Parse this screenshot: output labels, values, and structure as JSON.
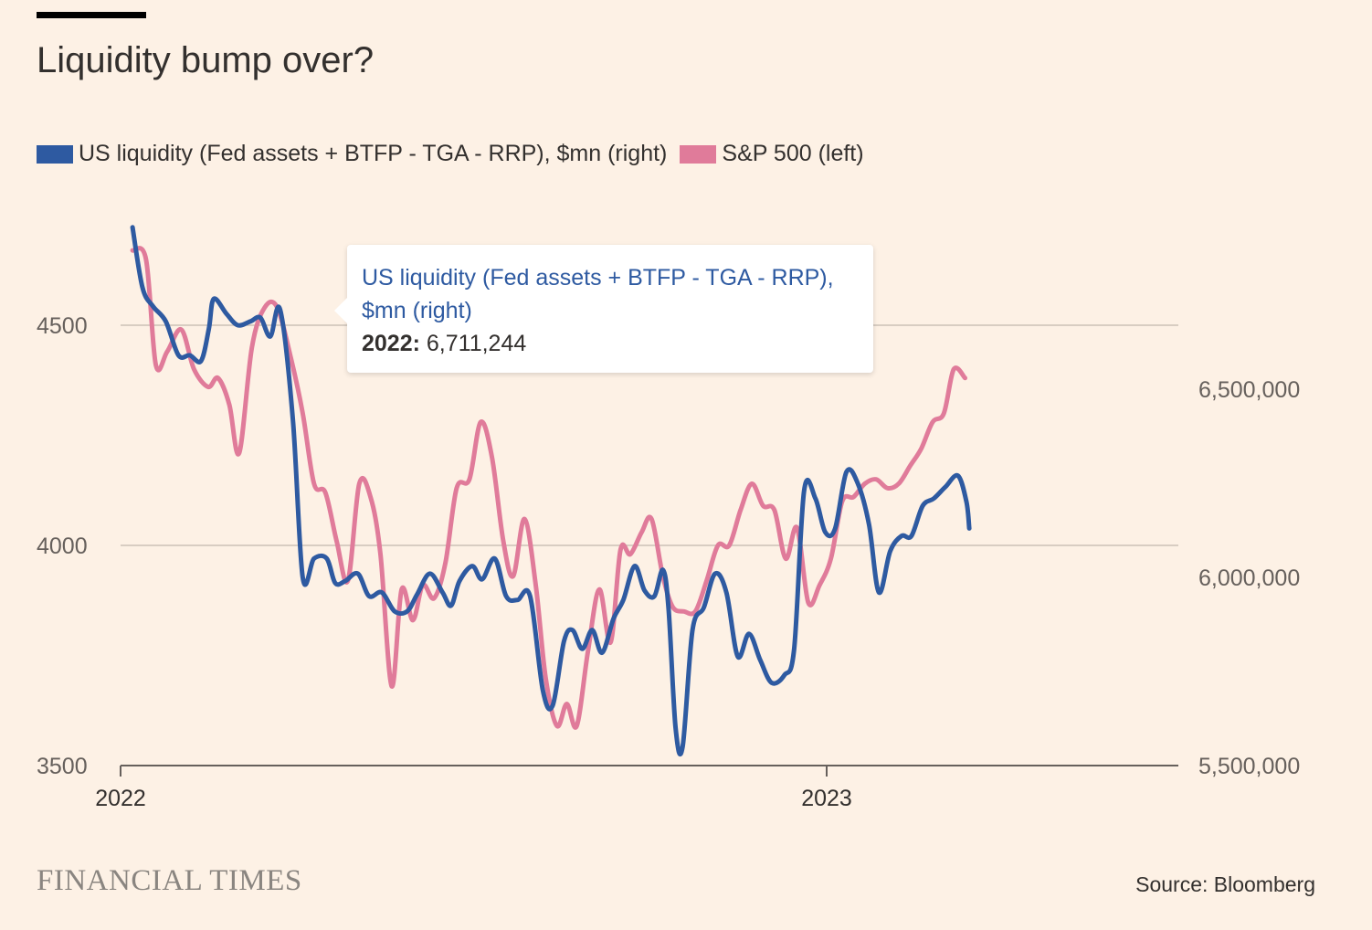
{
  "title": "Liquidity bump over?",
  "legend": {
    "items": [
      {
        "label": "US liquidity (Fed assets + BTFP - TGA - RRP), $mn (right)",
        "color": "#2e5aa1"
      },
      {
        "label": "S&P 500 (left)",
        "color": "#e07b9a"
      }
    ]
  },
  "tooltip": {
    "series": "US liquidity (Fed assets + BTFP - TGA - RRP), $mn (right)",
    "period_label": "2022:",
    "value": "6,711,244"
  },
  "brand": "FINANCIAL TIMES",
  "source": "Source: Bloomberg",
  "chart_data": {
    "type": "line",
    "x_axis": {
      "ticks": [
        "2022",
        "2023"
      ],
      "tick_values": [
        2022.0,
        2023.0
      ],
      "range": [
        2022.0,
        2023.47
      ]
    },
    "y_left": {
      "range": [
        3500,
        4700
      ],
      "ticks": [
        3500,
        4000,
        4500
      ],
      "tick_labels": [
        "3500",
        "4000",
        "4500"
      ]
    },
    "y_right": {
      "range": [
        5500000,
        6980000
      ],
      "ticks": [
        5500000,
        6000000,
        6500000
      ],
      "tick_labels": [
        "5,500,000",
        "6,000,000",
        "6,500,000"
      ]
    },
    "grid": true,
    "legend_position": "top-left",
    "series": [
      {
        "name": "US liquidity (Fed assets + BTFP - TGA - RRP), $mn (right)",
        "axis": "right",
        "color": "#2e5aa1",
        "points": [
          [
            2022.017,
            6930000
          ],
          [
            2022.031,
            6770000
          ],
          [
            2022.046,
            6720000
          ],
          [
            2022.064,
            6680000
          ],
          [
            2022.082,
            6590000
          ],
          [
            2022.098,
            6590000
          ],
          [
            2022.114,
            6575000
          ],
          [
            2022.125,
            6660000
          ],
          [
            2022.132,
            6740000
          ],
          [
            2022.15,
            6700000
          ],
          [
            2022.166,
            6670000
          ],
          [
            2022.184,
            6680000
          ],
          [
            2022.198,
            6690000
          ],
          [
            2022.212,
            6640000
          ],
          [
            2022.226,
            6711244
          ],
          [
            2022.244,
            6420000
          ],
          [
            2022.258,
            6000000
          ],
          [
            2022.274,
            6050000
          ],
          [
            2022.292,
            6050000
          ],
          [
            2022.304,
            5985000
          ],
          [
            2022.318,
            5990000
          ],
          [
            2022.336,
            6010000
          ],
          [
            2022.352,
            5950000
          ],
          [
            2022.37,
            5960000
          ],
          [
            2022.388,
            5910000
          ],
          [
            2022.406,
            5910000
          ],
          [
            2022.42,
            5955000
          ],
          [
            2022.438,
            6010000
          ],
          [
            2022.456,
            5960000
          ],
          [
            2022.468,
            5925000
          ],
          [
            2022.48,
            5990000
          ],
          [
            2022.498,
            6030000
          ],
          [
            2022.512,
            5995000
          ],
          [
            2022.53,
            6050000
          ],
          [
            2022.546,
            5950000
          ],
          [
            2022.562,
            5940000
          ],
          [
            2022.58,
            5950000
          ],
          [
            2022.598,
            5700000
          ],
          [
            2022.612,
            5660000
          ],
          [
            2022.628,
            5830000
          ],
          [
            2022.64,
            5860000
          ],
          [
            2022.654,
            5810000
          ],
          [
            2022.668,
            5860000
          ],
          [
            2022.682,
            5800000
          ],
          [
            2022.698,
            5890000
          ],
          [
            2022.712,
            5940000
          ],
          [
            2022.728,
            6030000
          ],
          [
            2022.742,
            5965000
          ],
          [
            2022.756,
            5950000
          ],
          [
            2022.768,
            6020000
          ],
          [
            2022.776,
            5920000
          ],
          [
            2022.786,
            5600000
          ],
          [
            2022.796,
            5550000
          ],
          [
            2022.81,
            5860000
          ],
          [
            2022.826,
            5920000
          ],
          [
            2022.842,
            6010000
          ],
          [
            2022.858,
            5960000
          ],
          [
            2022.874,
            5790000
          ],
          [
            2022.89,
            5850000
          ],
          [
            2022.906,
            5780000
          ],
          [
            2022.922,
            5720000
          ],
          [
            2022.94,
            5740000
          ],
          [
            2022.954,
            5810000
          ],
          [
            2022.968,
            6230000
          ],
          [
            2022.984,
            6210000
          ],
          [
            2022.998,
            6120000
          ],
          [
            2023.012,
            6130000
          ],
          [
            2023.028,
            6280000
          ],
          [
            2023.044,
            6250000
          ],
          [
            2023.06,
            6140000
          ],
          [
            2023.074,
            5960000
          ],
          [
            2023.09,
            6070000
          ],
          [
            2023.106,
            6110000
          ],
          [
            2023.12,
            6110000
          ],
          [
            2023.136,
            6190000
          ],
          [
            2023.152,
            6210000
          ],
          [
            2023.168,
            6240000
          ],
          [
            2023.186,
            6270000
          ],
          [
            2023.198,
            6200000
          ],
          [
            2023.202,
            6130000
          ]
        ]
      },
      {
        "name": "S&P 500 (left)",
        "axis": "left",
        "color": "#e07b9a",
        "points": [
          [
            2022.017,
            4670
          ],
          [
            2022.036,
            4650
          ],
          [
            2022.05,
            4410
          ],
          [
            2022.066,
            4440
          ],
          [
            2022.086,
            4490
          ],
          [
            2022.104,
            4400
          ],
          [
            2022.124,
            4360
          ],
          [
            2022.138,
            4380
          ],
          [
            2022.154,
            4320
          ],
          [
            2022.168,
            4210
          ],
          [
            2022.186,
            4450
          ],
          [
            2022.204,
            4540
          ],
          [
            2022.222,
            4540
          ],
          [
            2022.242,
            4420
          ],
          [
            2022.258,
            4300
          ],
          [
            2022.274,
            4140
          ],
          [
            2022.29,
            4120
          ],
          [
            2022.306,
            4010
          ],
          [
            2022.322,
            3920
          ],
          [
            2022.338,
            4140
          ],
          [
            2022.354,
            4110
          ],
          [
            2022.368,
            3980
          ],
          [
            2022.384,
            3680
          ],
          [
            2022.398,
            3900
          ],
          [
            2022.414,
            3830
          ],
          [
            2022.428,
            3910
          ],
          [
            2022.444,
            3880
          ],
          [
            2022.46,
            3960
          ],
          [
            2022.476,
            4130
          ],
          [
            2022.494,
            4150
          ],
          [
            2022.51,
            4280
          ],
          [
            2022.526,
            4200
          ],
          [
            2022.542,
            4010
          ],
          [
            2022.556,
            3930
          ],
          [
            2022.572,
            4060
          ],
          [
            2022.588,
            3910
          ],
          [
            2022.602,
            3700
          ],
          [
            2022.618,
            3590
          ],
          [
            2022.632,
            3640
          ],
          [
            2022.646,
            3590
          ],
          [
            2022.662,
            3760
          ],
          [
            2022.678,
            3900
          ],
          [
            2022.694,
            3780
          ],
          [
            2022.708,
            3990
          ],
          [
            2022.722,
            3980
          ],
          [
            2022.738,
            4030
          ],
          [
            2022.752,
            4060
          ],
          [
            2022.768,
            3930
          ],
          [
            2022.782,
            3860
          ],
          [
            2022.798,
            3850
          ],
          [
            2022.814,
            3850
          ],
          [
            2022.83,
            3920
          ],
          [
            2022.846,
            4000
          ],
          [
            2022.862,
            4000
          ],
          [
            2022.878,
            4080
          ],
          [
            2022.894,
            4140
          ],
          [
            2022.91,
            4090
          ],
          [
            2022.926,
            4080
          ],
          [
            2022.942,
            3970
          ],
          [
            2022.958,
            4040
          ],
          [
            2022.974,
            3870
          ],
          [
            2022.99,
            3910
          ],
          [
            2023.006,
            3970
          ],
          [
            2023.022,
            4100
          ],
          [
            2023.038,
            4110
          ],
          [
            2023.054,
            4140
          ],
          [
            2023.07,
            4150
          ],
          [
            2023.086,
            4130
          ],
          [
            2023.102,
            4140
          ],
          [
            2023.118,
            4180
          ],
          [
            2023.134,
            4220
          ],
          [
            2023.15,
            4280
          ],
          [
            2023.166,
            4300
          ],
          [
            2023.18,
            4400
          ],
          [
            2023.196,
            4380
          ]
        ]
      }
    ]
  }
}
